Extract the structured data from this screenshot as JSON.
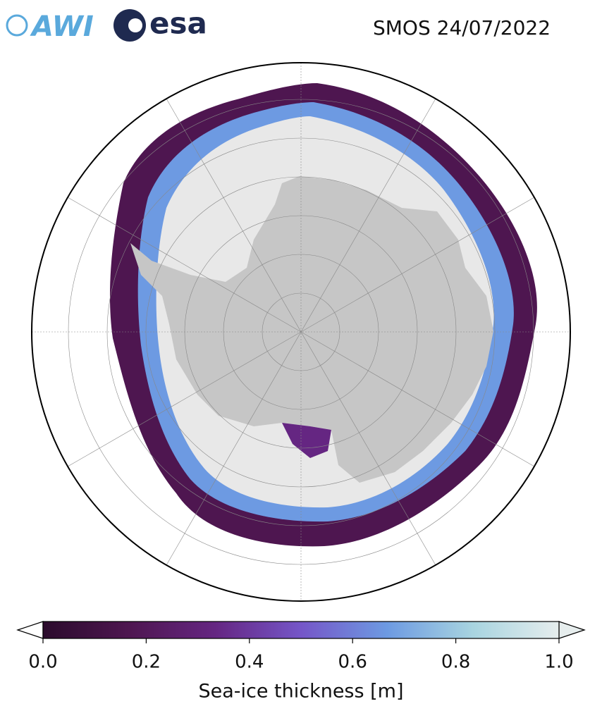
{
  "header": {
    "logos": [
      "AWI",
      "esa"
    ],
    "title": "SMOS 24/07/2022"
  },
  "colorbar": {
    "label": "Sea-ice thickness [m]",
    "lim": [
      0,
      1
    ],
    "ticks": [
      {
        "value": 0,
        "label": "0.0"
      },
      0.2,
      0.4,
      0.6,
      0.8,
      {
        "value": 1,
        "label": "1.0"
      }
    ],
    "colors": [
      "#2b0b2c",
      "#4e1650",
      "#652682",
      "#7556c8",
      "#6d9ae2",
      "#a8d4e0",
      "#e6eded"
    ]
  }
}
